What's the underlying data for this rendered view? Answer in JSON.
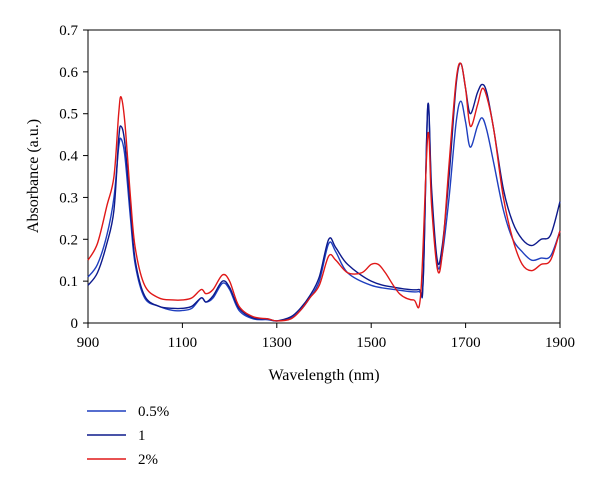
{
  "chart_data": {
    "type": "line",
    "title": "",
    "xlabel": "Wavelength (nm)",
    "ylabel": "Absorbance (a.u.)",
    "xlim": [
      900,
      1900
    ],
    "ylim": [
      0,
      0.7
    ],
    "xticks": [
      900,
      1100,
      1300,
      1500,
      1700,
      1900
    ],
    "yticks": [
      0,
      0.1,
      0.2,
      0.3,
      0.4,
      0.5,
      0.6,
      0.7
    ],
    "grid": false,
    "legend_position": "bottom-left",
    "series": [
      {
        "name": "0.5%",
        "color": "#1f3fbf",
        "points": [
          [
            900,
            0.11
          ],
          [
            920,
            0.14
          ],
          [
            940,
            0.21
          ],
          [
            955,
            0.3
          ],
          [
            965,
            0.42
          ],
          [
            970,
            0.44
          ],
          [
            978,
            0.4
          ],
          [
            990,
            0.25
          ],
          [
            1000,
            0.14
          ],
          [
            1020,
            0.06
          ],
          [
            1050,
            0.04
          ],
          [
            1080,
            0.03
          ],
          [
            1100,
            0.03
          ],
          [
            1120,
            0.035
          ],
          [
            1140,
            0.06
          ],
          [
            1150,
            0.05
          ],
          [
            1165,
            0.06
          ],
          [
            1185,
            0.095
          ],
          [
            1200,
            0.08
          ],
          [
            1220,
            0.03
          ],
          [
            1250,
            0.01
          ],
          [
            1280,
            0.008
          ],
          [
            1300,
            0.005
          ],
          [
            1330,
            0.012
          ],
          [
            1350,
            0.03
          ],
          [
            1370,
            0.06
          ],
          [
            1390,
            0.1
          ],
          [
            1410,
            0.19
          ],
          [
            1425,
            0.17
          ],
          [
            1450,
            0.12
          ],
          [
            1500,
            0.09
          ],
          [
            1550,
            0.08
          ],
          [
            1600,
            0.075
          ],
          [
            1610,
            0.1
          ],
          [
            1620,
            0.52
          ],
          [
            1628,
            0.3
          ],
          [
            1640,
            0.14
          ],
          [
            1650,
            0.16
          ],
          [
            1665,
            0.3
          ],
          [
            1680,
            0.48
          ],
          [
            1690,
            0.53
          ],
          [
            1700,
            0.48
          ],
          [
            1710,
            0.42
          ],
          [
            1725,
            0.47
          ],
          [
            1735,
            0.49
          ],
          [
            1745,
            0.46
          ],
          [
            1760,
            0.38
          ],
          [
            1780,
            0.27
          ],
          [
            1800,
            0.2
          ],
          [
            1820,
            0.17
          ],
          [
            1840,
            0.15
          ],
          [
            1860,
            0.155
          ],
          [
            1880,
            0.16
          ],
          [
            1900,
            0.22
          ]
        ]
      },
      {
        "name": "1",
        "color": "#0d1a8c",
        "points": [
          [
            900,
            0.09
          ],
          [
            920,
            0.12
          ],
          [
            940,
            0.19
          ],
          [
            955,
            0.27
          ],
          [
            965,
            0.44
          ],
          [
            970,
            0.47
          ],
          [
            978,
            0.43
          ],
          [
            990,
            0.27
          ],
          [
            1000,
            0.15
          ],
          [
            1020,
            0.065
          ],
          [
            1050,
            0.04
          ],
          [
            1080,
            0.035
          ],
          [
            1100,
            0.035
          ],
          [
            1120,
            0.04
          ],
          [
            1140,
            0.06
          ],
          [
            1150,
            0.05
          ],
          [
            1165,
            0.065
          ],
          [
            1185,
            0.1
          ],
          [
            1200,
            0.085
          ],
          [
            1220,
            0.035
          ],
          [
            1250,
            0.012
          ],
          [
            1280,
            0.01
          ],
          [
            1300,
            0.005
          ],
          [
            1330,
            0.015
          ],
          [
            1350,
            0.035
          ],
          [
            1370,
            0.065
          ],
          [
            1390,
            0.11
          ],
          [
            1410,
            0.2
          ],
          [
            1425,
            0.18
          ],
          [
            1450,
            0.14
          ],
          [
            1500,
            0.1
          ],
          [
            1550,
            0.085
          ],
          [
            1600,
            0.08
          ],
          [
            1610,
            0.1
          ],
          [
            1620,
            0.52
          ],
          [
            1628,
            0.32
          ],
          [
            1640,
            0.15
          ],
          [
            1650,
            0.18
          ],
          [
            1665,
            0.35
          ],
          [
            1680,
            0.57
          ],
          [
            1690,
            0.62
          ],
          [
            1700,
            0.56
          ],
          [
            1710,
            0.5
          ],
          [
            1725,
            0.55
          ],
          [
            1735,
            0.57
          ],
          [
            1745,
            0.55
          ],
          [
            1760,
            0.46
          ],
          [
            1780,
            0.32
          ],
          [
            1800,
            0.24
          ],
          [
            1820,
            0.2
          ],
          [
            1840,
            0.185
          ],
          [
            1860,
            0.2
          ],
          [
            1880,
            0.21
          ],
          [
            1900,
            0.29
          ]
        ]
      },
      {
        "name": "2%",
        "color": "#e01818",
        "points": [
          [
            900,
            0.15
          ],
          [
            920,
            0.19
          ],
          [
            940,
            0.28
          ],
          [
            955,
            0.35
          ],
          [
            965,
            0.5
          ],
          [
            970,
            0.54
          ],
          [
            978,
            0.48
          ],
          [
            990,
            0.3
          ],
          [
            1000,
            0.18
          ],
          [
            1020,
            0.09
          ],
          [
            1050,
            0.06
          ],
          [
            1080,
            0.055
          ],
          [
            1100,
            0.055
          ],
          [
            1120,
            0.06
          ],
          [
            1140,
            0.08
          ],
          [
            1150,
            0.07
          ],
          [
            1165,
            0.08
          ],
          [
            1185,
            0.115
          ],
          [
            1200,
            0.1
          ],
          [
            1220,
            0.04
          ],
          [
            1250,
            0.015
          ],
          [
            1280,
            0.01
          ],
          [
            1300,
            0.005
          ],
          [
            1330,
            0.01
          ],
          [
            1350,
            0.03
          ],
          [
            1370,
            0.06
          ],
          [
            1390,
            0.09
          ],
          [
            1410,
            0.16
          ],
          [
            1425,
            0.15
          ],
          [
            1450,
            0.12
          ],
          [
            1480,
            0.12
          ],
          [
            1500,
            0.14
          ],
          [
            1515,
            0.14
          ],
          [
            1530,
            0.12
          ],
          [
            1560,
            0.07
          ],
          [
            1590,
            0.055
          ],
          [
            1605,
            0.07
          ],
          [
            1620,
            0.45
          ],
          [
            1628,
            0.28
          ],
          [
            1640,
            0.13
          ],
          [
            1650,
            0.16
          ],
          [
            1665,
            0.38
          ],
          [
            1680,
            0.58
          ],
          [
            1690,
            0.62
          ],
          [
            1700,
            0.56
          ],
          [
            1710,
            0.47
          ],
          [
            1725,
            0.52
          ],
          [
            1735,
            0.56
          ],
          [
            1745,
            0.54
          ],
          [
            1760,
            0.46
          ],
          [
            1780,
            0.3
          ],
          [
            1800,
            0.2
          ],
          [
            1820,
            0.14
          ],
          [
            1840,
            0.125
          ],
          [
            1860,
            0.14
          ],
          [
            1880,
            0.15
          ],
          [
            1900,
            0.22
          ]
        ]
      }
    ]
  }
}
